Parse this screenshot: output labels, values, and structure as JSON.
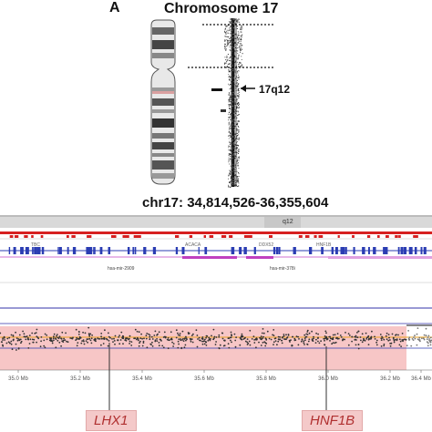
{
  "figure": {
    "panel_label": "A",
    "chromosome_title": "Chromosome 17",
    "cytoband_label": "17q12",
    "region_title": "chr17: 34,814,526-36,355,604",
    "band_label": "q12",
    "track_labels": [
      "TBC",
      "ACACA",
      "DDX52",
      "HNF1B"
    ],
    "mirna_labels": [
      "hsa-mir-2909",
      "hsa-mir-378i"
    ],
    "axis_ticks": [
      "35.0 Mb",
      "35.2 Mb",
      "35.4 Mb",
      "35.6 Mb",
      "35.8 Mb",
      "36.0 Mb",
      "36.2 Mb",
      "36.4 Mb"
    ],
    "genes": [
      "LHX1",
      "HNF1B"
    ]
  },
  "colors": {
    "deletion_band": "#f7c6c6",
    "gene_label_bg": "#f4c9c9",
    "gene_label_text": "#b03030",
    "track_red": "#d62020",
    "track_blue": "#2b3db3",
    "track_magenta": "#c040c0",
    "mean_line": "#e8a020"
  }
}
